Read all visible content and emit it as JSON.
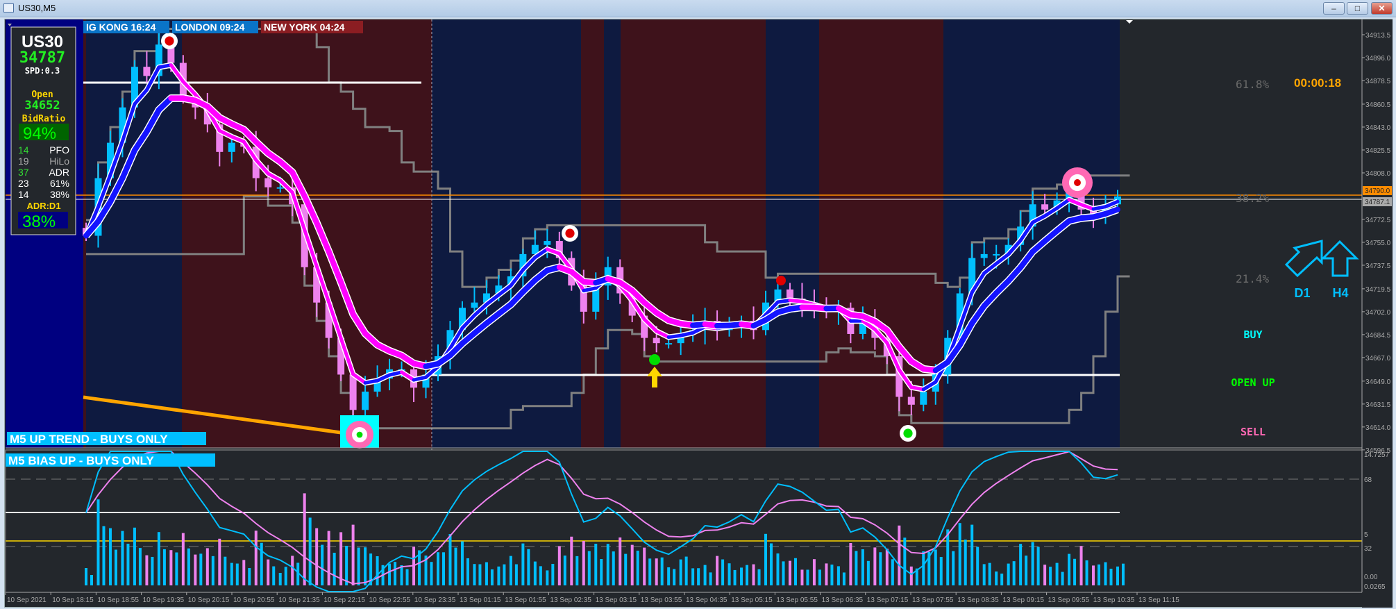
{
  "window": {
    "title": "US30,M5",
    "buttons": [
      "minimize",
      "maximize",
      "close"
    ]
  },
  "sessions": [
    {
      "label": "IG KONG 16:24",
      "color": "#0a74c8"
    },
    {
      "label": "LONDON  09:24",
      "color": "#0a74c8"
    },
    {
      "label": "NEW YORK  04:24",
      "color": "#8b1d22"
    }
  ],
  "info_panel": {
    "symbol": "US30",
    "price": "34787",
    "spread": "SPD:0.3",
    "open_label": "Open",
    "open_value": "34652",
    "bid_ratio_label": "BidRatio",
    "bid_ratio": "94%",
    "rows": [
      {
        "value": "14",
        "label": "PFO",
        "value_color": "#33dd33",
        "label_color": "#ffffff"
      },
      {
        "value": "19",
        "label": "HiLo",
        "value_color": "#aaaaaa",
        "label_color": "#aaaaaa"
      },
      {
        "value": "37",
        "label": "ADR",
        "value_color": "#33dd33",
        "label_color": "#ffffff"
      },
      {
        "value": "23",
        "label": "61%",
        "value_color": "#ffffff",
        "label_color": "#ffffff"
      },
      {
        "value": "14",
        "label": "38%",
        "value_color": "#ffffff",
        "label_color": "#ffffff"
      }
    ],
    "adr_label": "ADR:D1",
    "adr_value": "38%"
  },
  "banners": {
    "trend": "M5 UP TREND - BUYS ONLY",
    "bias": "M5  BIAS UP - BUYS ONLY"
  },
  "right_panel": {
    "fib_618": "61.8%",
    "fib_382": "38.2%",
    "fib_214": "21.4%",
    "countdown": "00:00:18",
    "d1_label": "D1",
    "d1_icon": "arrow-up-right-icon",
    "h4_label": "H4",
    "h4_icon": "arrow-up-icon",
    "buy": "BUY",
    "open_up": "OPEN UP",
    "sell": "SELL"
  },
  "colors": {
    "up": "#00bfff",
    "down": "#ee82ee",
    "ma_up": "#1414ff",
    "ma_down": "#ff00ff",
    "asia_bg": "#0e1a40",
    "ny_bg": "#3e121b",
    "buy": "#00ffff",
    "open_up": "#00ff00",
    "sell": "#ff69b4",
    "countdown": "#ffa500"
  },
  "chart_data": {
    "type": "candlestick",
    "symbol": "US30",
    "timeframe": "M5",
    "price_axis": {
      "ticks": [
        "34913.5",
        "34896.0",
        "34878.5",
        "34860.5",
        "34843.0",
        "34825.5",
        "34808.0",
        "34772.5",
        "34755.0",
        "34737.5",
        "34719.5",
        "34702.0",
        "34684.5",
        "34667.0",
        "34649.0",
        "34631.5",
        "34614.0",
        "34596.5"
      ],
      "range": [
        34596.5,
        34922
      ]
    },
    "bid_label": "34790.0",
    "last_label": "34787.1",
    "time_axis": [
      "10 Sep 2021",
      "10 Sep 18:15",
      "10 Sep 18:55",
      "10 Sep 19:35",
      "10 Sep 20:15",
      "10 Sep 20:55",
      "10 Sep 21:35",
      "10 Sep 22:15",
      "10 Sep 22:55",
      "10 Sep 23:35",
      "13 Sep 01:15",
      "13 Sep 01:55",
      "13 Sep 02:35",
      "13 Sep 03:15",
      "13 Sep 03:55",
      "13 Sep 04:35",
      "13 Sep 05:15",
      "13 Sep 05:55",
      "13 Sep 06:35",
      "13 Sep 07:15",
      "13 Sep 07:55",
      "13 Sep 08:35",
      "13 Sep 09:15",
      "13 Sep 09:55",
      "13 Sep 10:35",
      "13 Sep 11:15"
    ],
    "close": [
      34760,
      34804,
      34831,
      34858,
      34889,
      34882,
      34906,
      34892,
      34865,
      34858,
      34845,
      34824,
      34831,
      34828,
      34804,
      34797,
      34797,
      34784,
      34736,
      34709,
      34682,
      34654,
      34627,
      34641,
      34651,
      34658,
      34658,
      34644,
      34654,
      34668,
      34688,
      34705,
      34709,
      34716,
      34722,
      34729,
      34746,
      34753,
      34756,
      34743,
      34722,
      34702,
      34722,
      34736,
      34716,
      34699,
      34682,
      34678,
      34678,
      34685,
      34688,
      34695,
      34688,
      34692,
      34695,
      34688,
      34709,
      34719,
      34712,
      34709,
      34705,
      34702,
      34705,
      34685,
      34695,
      34682,
      34668,
      34637,
      34631,
      34641,
      34654,
      34682,
      34716,
      34743,
      34746,
      34746,
      34753,
      34767,
      34784,
      34780,
      34787,
      34794,
      34780,
      34777,
      34784,
      34790
    ],
    "levels": {
      "white_upper": 34880,
      "white_lower": 34652
    },
    "sub_window": {
      "ticks": [
        "14.7257",
        "68",
        "5",
        "32",
        "0.00",
        "0.0265"
      ],
      "levels": [
        68,
        32
      ]
    }
  }
}
